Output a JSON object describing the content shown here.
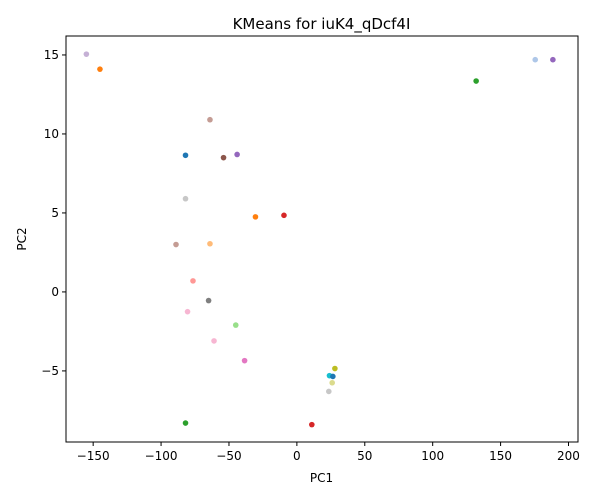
{
  "chart_data": {
    "type": "scatter",
    "title": "KMeans for iuK4_qDcf4I",
    "xlabel": "PC1",
    "ylabel": "PC2",
    "xlim": [
      -170,
      207
    ],
    "ylim": [
      -9.5,
      16.2
    ],
    "xticks": [
      -150,
      -100,
      -50,
      0,
      50,
      100,
      150,
      200
    ],
    "yticks": [
      -5,
      0,
      5,
      10,
      15
    ],
    "xtick_labels": [
      "−150",
      "−100",
      "−50",
      "0",
      "50",
      "100",
      "150",
      "200"
    ],
    "ytick_labels": [
      "−5",
      "0",
      "5",
      "10",
      "15"
    ],
    "grid": false,
    "legend": false,
    "points": [
      {
        "x": -155.0,
        "y": 15.05,
        "color": "#c5b0d5"
      },
      {
        "x": -145.0,
        "y": 14.1,
        "color": "#ff7f0e"
      },
      {
        "x": 132.0,
        "y": 13.35,
        "color": "#2ca02c"
      },
      {
        "x": 175.5,
        "y": 14.7,
        "color": "#aec7e8"
      },
      {
        "x": 188.5,
        "y": 14.7,
        "color": "#9467bd"
      },
      {
        "x": -64.0,
        "y": 10.9,
        "color": "#c49c94"
      },
      {
        "x": -82.0,
        "y": 8.65,
        "color": "#1f77b4"
      },
      {
        "x": -54.0,
        "y": 8.5,
        "color": "#8c564b"
      },
      {
        "x": -44.0,
        "y": 8.7,
        "color": "#9467bd"
      },
      {
        "x": -82.0,
        "y": 5.9,
        "color": "#c7c7c7"
      },
      {
        "x": -30.5,
        "y": 4.75,
        "color": "#ff7f0e"
      },
      {
        "x": -9.5,
        "y": 4.85,
        "color": "#d62728"
      },
      {
        "x": -89.0,
        "y": 3.0,
        "color": "#c49c94"
      },
      {
        "x": -64.0,
        "y": 3.05,
        "color": "#ffbb78"
      },
      {
        "x": -76.5,
        "y": 0.7,
        "color": "#ff9896"
      },
      {
        "x": -65.0,
        "y": -0.55,
        "color": "#7f7f7f"
      },
      {
        "x": -80.5,
        "y": -1.25,
        "color": "#f7b6d2"
      },
      {
        "x": -45.0,
        "y": -2.1,
        "color": "#98df8a"
      },
      {
        "x": -61.0,
        "y": -3.1,
        "color": "#f7b6d2"
      },
      {
        "x": -38.5,
        "y": -4.35,
        "color": "#e377c2"
      },
      {
        "x": 28.0,
        "y": -4.85,
        "color": "#bcbd22"
      },
      {
        "x": 24.0,
        "y": -5.3,
        "color": "#17becf"
      },
      {
        "x": 26.5,
        "y": -5.35,
        "color": "#1f77b4"
      },
      {
        "x": 26.0,
        "y": -5.75,
        "color": "#dbdb8d"
      },
      {
        "x": 23.5,
        "y": -6.3,
        "color": "#c7c7c7"
      },
      {
        "x": -82.0,
        "y": -8.3,
        "color": "#2ca02c"
      },
      {
        "x": 11.0,
        "y": -8.4,
        "color": "#d62728"
      }
    ]
  }
}
